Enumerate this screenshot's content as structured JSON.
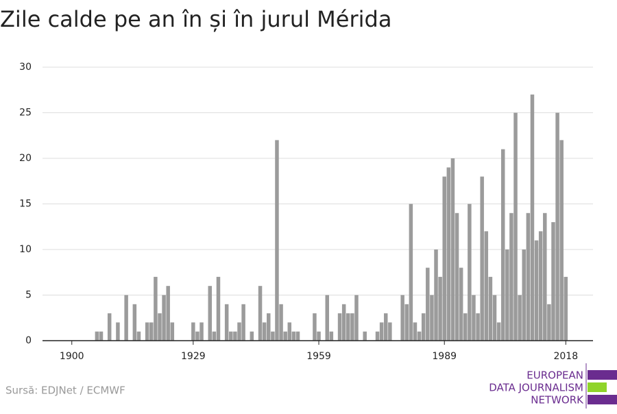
{
  "chart_data": {
    "type": "bar",
    "title": "Zile calde pe an în și în jurul Mérida",
    "x": [
      1900,
      1901,
      1902,
      1903,
      1904,
      1905,
      1906,
      1907,
      1908,
      1909,
      1910,
      1911,
      1912,
      1913,
      1914,
      1915,
      1916,
      1917,
      1918,
      1919,
      1920,
      1921,
      1922,
      1923,
      1924,
      1925,
      1926,
      1927,
      1928,
      1929,
      1930,
      1931,
      1932,
      1933,
      1934,
      1935,
      1936,
      1937,
      1938,
      1939,
      1940,
      1941,
      1942,
      1943,
      1944,
      1945,
      1946,
      1947,
      1948,
      1949,
      1950,
      1951,
      1952,
      1953,
      1954,
      1955,
      1956,
      1957,
      1958,
      1959,
      1960,
      1961,
      1962,
      1963,
      1964,
      1965,
      1966,
      1967,
      1968,
      1969,
      1970,
      1971,
      1972,
      1973,
      1974,
      1975,
      1976,
      1977,
      1978,
      1979,
      1980,
      1981,
      1982,
      1983,
      1984,
      1985,
      1986,
      1987,
      1988,
      1989,
      1990,
      1991,
      1992,
      1993,
      1994,
      1995,
      1996,
      1997,
      1998,
      1999,
      2000,
      2001,
      2002,
      2003,
      2004,
      2005,
      2006,
      2007,
      2008,
      2009,
      2010,
      2011,
      2012,
      2013,
      2014,
      2015,
      2016,
      2017,
      2018
    ],
    "values": [
      0,
      0,
      0,
      0,
      0,
      0,
      1,
      1,
      0,
      3,
      0,
      2,
      0,
      5,
      0,
      4,
      1,
      0,
      2,
      2,
      7,
      3,
      5,
      6,
      2,
      0,
      0,
      0,
      0,
      2,
      1,
      2,
      0,
      6,
      1,
      7,
      0,
      4,
      1,
      1,
      2,
      4,
      0,
      1,
      0,
      6,
      2,
      3,
      1,
      22,
      4,
      1,
      2,
      1,
      1,
      0,
      0,
      0,
      3,
      1,
      0,
      5,
      1,
      0,
      3,
      4,
      3,
      3,
      5,
      0,
      1,
      0,
      0,
      1,
      2,
      3,
      2,
      0,
      0,
      5,
      4,
      15,
      2,
      1,
      3,
      8,
      5,
      10,
      7,
      18,
      19,
      20,
      14,
      8,
      3,
      15,
      5,
      3,
      18,
      12,
      7,
      5,
      2,
      21,
      10,
      14,
      25,
      5,
      10,
      14,
      27,
      11,
      12,
      14,
      4,
      13,
      25,
      22,
      7
    ],
    "color": "#9b9b9b",
    "xlim": [
      1893,
      2024.5
    ],
    "xticks": [
      1900,
      1929,
      1959,
      1989,
      2018
    ],
    "ylim": [
      0,
      30
    ],
    "yticks": [
      0,
      5,
      10,
      15,
      20,
      25,
      30
    ],
    "grid": true
  },
  "source": "Sursă: EDJNet / ECMWF",
  "logo": [
    "EUROPEAN",
    "DATA JOURNALISM",
    "NETWORK"
  ]
}
